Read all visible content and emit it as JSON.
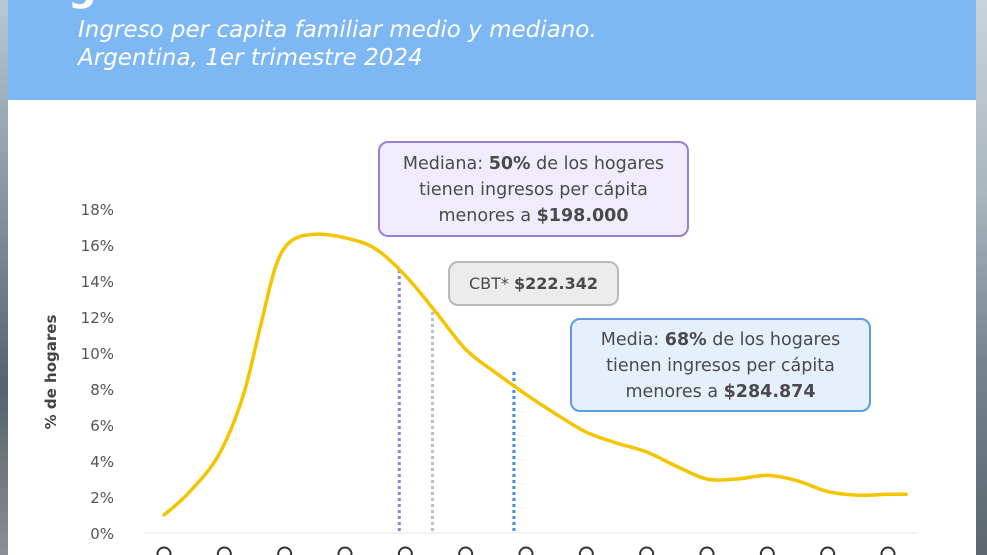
{
  "header": {
    "deco_text": "g",
    "subtitle_line1": "Ingreso per capita familiar medio y mediano.",
    "subtitle_line2": "Argentina, 1er trimestre 2024"
  },
  "callouts": {
    "median": {
      "line1_a": "Mediana: ",
      "line1_b": "50%",
      "line1_c": " de los hogares",
      "line2": "tienen ingresos per cápita",
      "line3_a": "menores a ",
      "line3_b": "$198.000"
    },
    "cbt": {
      "a": "CBT* ",
      "b": "$222.342"
    },
    "mean": {
      "line1_a": "Media: ",
      "line1_b": "68%",
      "line1_c": " de los hogares",
      "line2": "tienen ingresos per cápita",
      "line3_a": "menores a ",
      "line3_b": "$284.874"
    }
  },
  "chart_data": {
    "type": "line",
    "ylabel": "% de hogares",
    "yticks": [
      "0%",
      "2%",
      "4%",
      "6%",
      "8%",
      "10%",
      "12%",
      "14%",
      "16%",
      "18%"
    ],
    "ylim": [
      0,
      18
    ],
    "x_category_count": 13,
    "series": [
      {
        "values": [
          [
            0.0,
            1.0
          ],
          [
            0.4,
            2.2
          ],
          [
            0.9,
            4.3
          ],
          [
            1.3,
            7.5
          ],
          [
            1.6,
            11.5
          ],
          [
            1.85,
            14.8
          ],
          [
            2.1,
            16.2
          ],
          [
            2.5,
            16.6
          ],
          [
            3.0,
            16.4
          ],
          [
            3.5,
            15.8
          ],
          [
            4.0,
            14.3
          ],
          [
            4.5,
            12.3
          ],
          [
            5.0,
            10.2
          ],
          [
            5.5,
            8.9
          ],
          [
            6.0,
            7.7
          ],
          [
            6.5,
            6.6
          ],
          [
            7.0,
            5.6
          ],
          [
            7.5,
            5.0
          ],
          [
            8.0,
            4.5
          ],
          [
            8.5,
            3.7
          ],
          [
            9.0,
            3.0
          ],
          [
            9.5,
            3.0
          ],
          [
            10.0,
            3.2
          ],
          [
            10.5,
            2.9
          ],
          [
            11.0,
            2.3
          ],
          [
            11.5,
            2.1
          ],
          [
            12.0,
            2.15
          ],
          [
            12.3,
            2.15
          ]
        ],
        "color": "#f5c400"
      }
    ],
    "markers": [
      {
        "x": 3.9,
        "ytop": 14.8,
        "color": "#9a7fd6",
        "label_ref": "median"
      },
      {
        "x": 4.45,
        "ytop": 12.5,
        "color": "#bdbdbd",
        "label_ref": "cbt"
      },
      {
        "x": 5.8,
        "ytop": 9.0,
        "color": "#3f8fe0",
        "label_ref": "mean"
      }
    ],
    "grid": false,
    "colors": {
      "line": "#f5c400",
      "header": "#7db8f5",
      "median": "#9a7fd6",
      "cbt": "#bdbdbd",
      "mean": "#3f8fe0"
    }
  }
}
